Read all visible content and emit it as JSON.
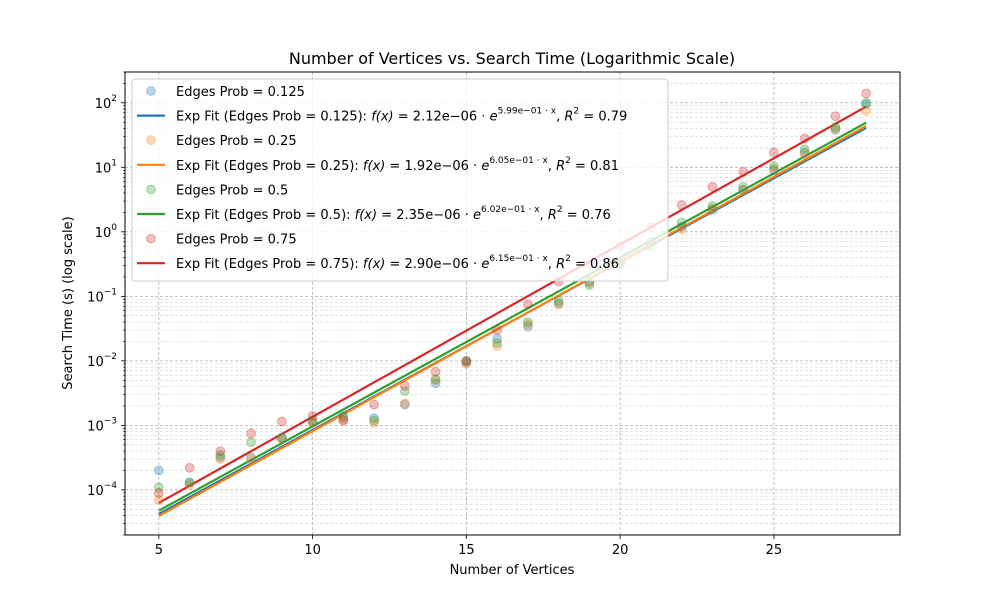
{
  "chart_data": {
    "type": "scatter",
    "title": "Number of Vertices vs. Search Time (Logarithmic Scale)",
    "xlabel": "Number of Vertices",
    "ylabel": "Search Time (s) (log scale)",
    "xlim": [
      3.9,
      29.1
    ],
    "ylim": [
      2e-05,
      300
    ],
    "yscale": "log",
    "grid": "on (major and minor, dashed)",
    "legend_placement": "top-left",
    "x_ticks": [
      5,
      10,
      15,
      20,
      25
    ],
    "y_ticks": [
      {
        "value": 0.0001,
        "base": "10",
        "exp": "−4"
      },
      {
        "value": 0.001,
        "base": "10",
        "exp": "−3"
      },
      {
        "value": 0.01,
        "base": "10",
        "exp": "−2"
      },
      {
        "value": 0.1,
        "base": "10",
        "exp": "−1"
      },
      {
        "value": 1,
        "base": "10",
        "exp": "0"
      },
      {
        "value": 10,
        "base": "10",
        "exp": "1"
      },
      {
        "value": 100,
        "base": "10",
        "exp": "2"
      }
    ],
    "x": [
      5,
      6,
      7,
      8,
      9,
      10,
      11,
      12,
      13,
      14,
      15,
      16,
      17,
      18,
      19,
      20,
      21,
      22,
      23,
      24,
      25,
      26,
      27,
      28
    ],
    "series": [
      {
        "name": "Edges Prob = 0.125",
        "color": "#1f77b4",
        "values": [
          0.0002,
          0.00013,
          0.00032,
          0.00032,
          0.00065,
          0.0011,
          0.0013,
          0.0013,
          0.0021,
          0.0045,
          0.0095,
          0.022,
          0.034,
          0.078,
          0.17,
          0.33,
          0.7,
          1.2,
          2.2,
          4.5,
          9,
          17,
          38,
          95
        ],
        "fit": {
          "a": 2.12e-06,
          "b": 0.599,
          "r2": "0.79",
          "legend": {
            "lead": "Exp Fit (Edges Prob = 0.125): ",
            "coef": "2.12e−06",
            "exp": "5.99e−01",
            "r2": "0.79"
          }
        }
      },
      {
        "name": "Edges Prob = 0.25",
        "color": "#ff7f0e",
        "values": [
          7e-05,
          0.00012,
          0.0003,
          0.0003,
          0.00062,
          0.0011,
          0.0012,
          0.0011,
          0.0022,
          0.005,
          0.009,
          0.017,
          0.037,
          0.075,
          0.16,
          0.33,
          0.65,
          1.1,
          2.3,
          4.4,
          9.5,
          16,
          40,
          75
        ],
        "fit": {
          "a": 1.92e-06,
          "b": 0.605,
          "r2": "0.81",
          "legend": {
            "lead": "Exp Fit (Edges Prob = 0.25): ",
            "coef": "1.92e−06",
            "exp": "6.05e−01",
            "r2": "0.81"
          }
        }
      },
      {
        "name": "Edges Prob = 0.5",
        "color": "#2ca02c",
        "values": [
          0.00011,
          0.00013,
          0.00035,
          0.00055,
          0.00063,
          0.0012,
          0.0014,
          0.0012,
          0.0034,
          0.0052,
          0.01,
          0.019,
          0.04,
          0.085,
          0.15,
          0.32,
          0.6,
          1.4,
          2.5,
          5.0,
          10.5,
          19,
          42,
          100
        ],
        "fit": {
          "a": 2.35e-06,
          "b": 0.602,
          "r2": "0.76",
          "legend": {
            "lead": "Exp Fit (Edges Prob = 0.5): ",
            "coef": "2.35e−06",
            "exp": "6.02e−01",
            "r2": "0.76"
          }
        }
      },
      {
        "name": "Edges Prob = 0.75",
        "color": "#d62728",
        "values": [
          9e-05,
          0.00022,
          0.0004,
          0.00075,
          0.00115,
          0.0014,
          0.0012,
          0.0021,
          0.0041,
          0.0068,
          0.01,
          0.03,
          0.075,
          0.17,
          0.3,
          0.6,
          1.2,
          2.6,
          5.0,
          8.5,
          17,
          28,
          62,
          140
        ],
        "fit": {
          "a": 2.9e-06,
          "b": 0.615,
          "r2": "0.86",
          "legend": {
            "lead": "Exp Fit (Edges Prob = 0.75): ",
            "coef": "2.90e−06",
            "exp": "6.15e−01",
            "r2": "0.86"
          }
        }
      }
    ]
  }
}
